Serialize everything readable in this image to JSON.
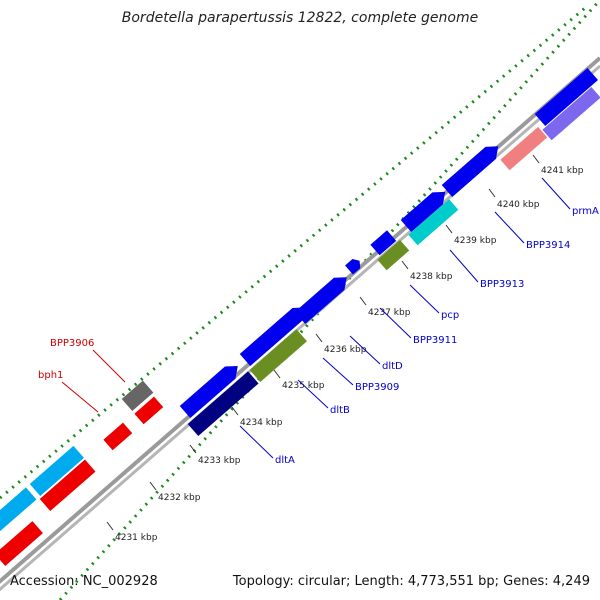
{
  "title": "Bordetella parapertussis 12822, complete genome",
  "footer": {
    "accession": "Accession: NC_002928",
    "stats": "Topology: circular; Length: 4,773,551 bp; Genes: 4,249"
  },
  "colors": {
    "backbone": "#999999",
    "dots": "#1a8a1a",
    "label_blue": "#0000cc",
    "label_red": "#cc0000"
  },
  "ticks": [
    "4231 kbp",
    "4232 kbp",
    "4233 kbp",
    "4234 kbp",
    "4235 kbp",
    "4236 kbp",
    "4237 kbp",
    "4238 kbp",
    "4239 kbp",
    "4240 kbp",
    "4241 kbp"
  ],
  "gene_labels": [
    {
      "text": "BPP3906",
      "color": "red"
    },
    {
      "text": "bph1",
      "color": "red"
    },
    {
      "text": "dltA",
      "color": "blue"
    },
    {
      "text": "dltB",
      "color": "blue"
    },
    {
      "text": "BPP3909",
      "color": "blue"
    },
    {
      "text": "dltD",
      "color": "blue"
    },
    {
      "text": "BPP3911",
      "color": "blue"
    },
    {
      "text": "pcp",
      "color": "blue"
    },
    {
      "text": "BPP3913",
      "color": "blue"
    },
    {
      "text": "BPP3914",
      "color": "blue"
    },
    {
      "text": "prmA",
      "color": "blue"
    }
  ]
}
